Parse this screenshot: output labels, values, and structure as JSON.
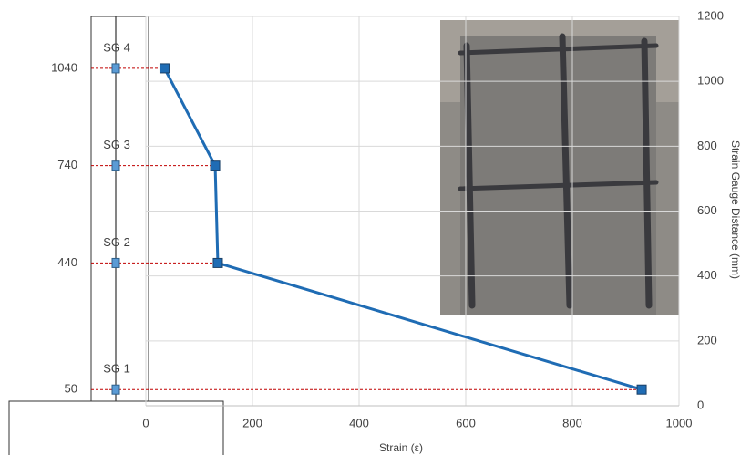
{
  "chart_data": {
    "type": "line",
    "x_label": "Strain (ε)",
    "y_label": "Strain Gauge Distance (mm)",
    "x": [
      930,
      135,
      130,
      35
    ],
    "series": [
      {
        "color": "#1f6cb4",
        "values": [
          50,
          440,
          740,
          1040
        ]
      }
    ],
    "gauge_labels": [
      "SG 1",
      "SG 2",
      "SG 3",
      "SG 4"
    ],
    "xlim": [
      0,
      1000
    ],
    "xticks": [
      0,
      200,
      400,
      600,
      800,
      1000
    ],
    "ylim": [
      0,
      1200
    ],
    "yticks": [
      0,
      200,
      400,
      600,
      800,
      1000,
      1200
    ],
    "grid": true
  }
}
